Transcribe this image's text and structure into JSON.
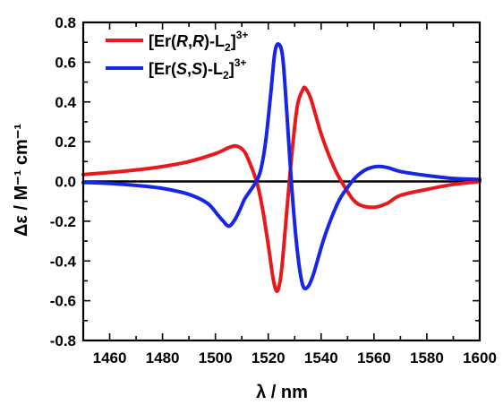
{
  "chart_data": {
    "type": "line",
    "title": "",
    "xlabel": "λ / nm",
    "ylabel": "Δε / M⁻¹ cm⁻¹",
    "xlim": [
      1450,
      1600
    ],
    "ylim": [
      -0.8,
      0.8
    ],
    "xticks": [
      "1460",
      "1480",
      "1500",
      "1520",
      "1540",
      "1560",
      "1580",
      "1600"
    ],
    "yticks": [
      "0.8",
      "0.6",
      "0.4",
      "0.2",
      "0.0",
      "-0.2",
      "-0.4",
      "-0.6",
      "-0.8"
    ],
    "xtick_values": [
      1460,
      1480,
      1500,
      1520,
      1540,
      1560,
      1580,
      1600
    ],
    "ytick_values": [
      0.8,
      0.6,
      0.4,
      0.2,
      0.0,
      -0.2,
      -0.4,
      -0.6,
      -0.8
    ],
    "grid": false,
    "zero_line": true,
    "legend_position": "top-left",
    "series": [
      {
        "name": "[Er(R,R)-L2]3+",
        "legend": {
          "a": "[Er(",
          "b": "R",
          "c": ",",
          "d": "R",
          "e": ")-L",
          "sub": "2",
          "f": "]",
          "sup": "3+"
        },
        "color": "#e8191c",
        "x": [
          1450,
          1460,
          1470,
          1480,
          1490,
          1500,
          1505,
          1508,
          1511,
          1514,
          1516,
          1518,
          1520,
          1522,
          1523.5,
          1525,
          1527,
          1529,
          1531,
          1533,
          1534,
          1536,
          1538,
          1540,
          1543,
          1546,
          1549,
          1552,
          1555,
          1560,
          1565,
          1570,
          1580,
          1590,
          1600
        ],
        "y": [
          0.035,
          0.045,
          0.058,
          0.075,
          0.1,
          0.14,
          0.17,
          0.178,
          0.15,
          0.06,
          -0.02,
          -0.15,
          -0.32,
          -0.5,
          -0.55,
          -0.45,
          -0.15,
          0.15,
          0.38,
          0.46,
          0.47,
          0.42,
          0.33,
          0.24,
          0.13,
          0.04,
          -0.03,
          -0.09,
          -0.12,
          -0.13,
          -0.11,
          -0.07,
          -0.04,
          -0.015,
          0.0
        ]
      },
      {
        "name": "[Er(S,S)-L2]3+",
        "legend": {
          "a": "[Er(",
          "b": "S",
          "c": ",",
          "d": "S",
          "e": ")-L",
          "sub": "2",
          "f": "]",
          "sup": "3+"
        },
        "color": "#1726e6",
        "x": [
          1450,
          1460,
          1470,
          1480,
          1490,
          1497,
          1501,
          1503,
          1505,
          1507,
          1509,
          1511,
          1513,
          1515,
          1517,
          1519,
          1521,
          1522.5,
          1524,
          1525.5,
          1527,
          1529,
          1531,
          1533,
          1535,
          1537,
          1539,
          1541,
          1544,
          1547,
          1550,
          1553,
          1557,
          1561,
          1565,
          1570,
          1580,
          1590,
          1600
        ],
        "y": [
          -0.005,
          -0.01,
          -0.02,
          -0.035,
          -0.065,
          -0.11,
          -0.17,
          -0.2,
          -0.225,
          -0.2,
          -0.15,
          -0.09,
          -0.05,
          -0.01,
          0.05,
          0.2,
          0.45,
          0.65,
          0.69,
          0.62,
          0.35,
          -0.05,
          -0.35,
          -0.52,
          -0.53,
          -0.47,
          -0.38,
          -0.29,
          -0.18,
          -0.09,
          -0.03,
          0.02,
          0.06,
          0.075,
          0.07,
          0.05,
          0.03,
          0.015,
          0.01
        ]
      }
    ]
  }
}
